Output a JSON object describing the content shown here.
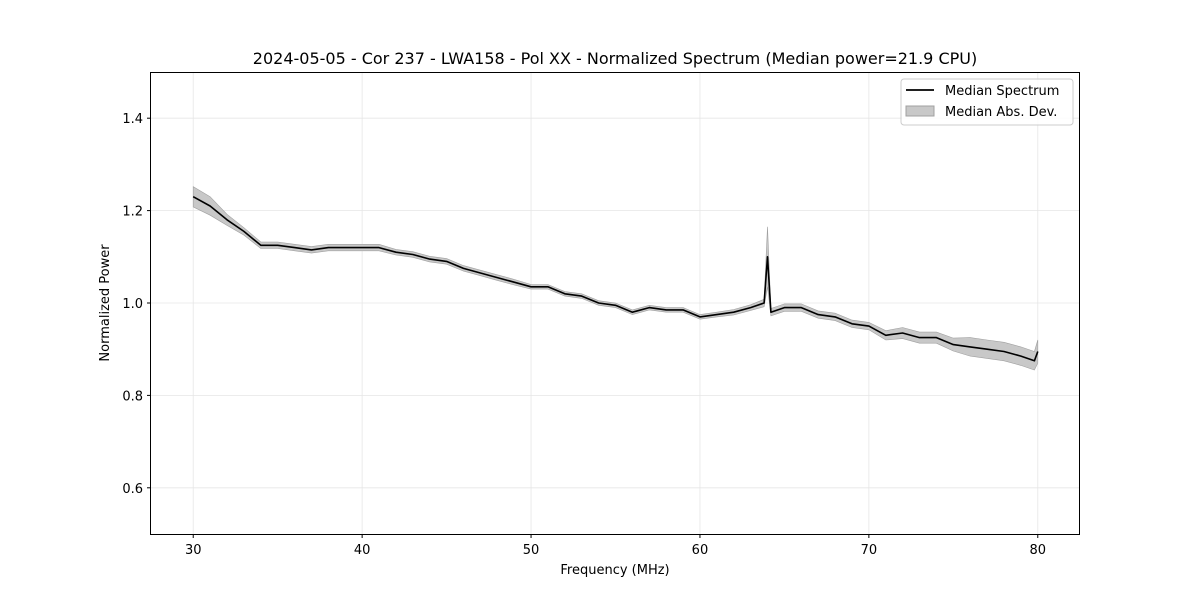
{
  "chart_data": {
    "type": "line",
    "title": "2024-05-05 - Cor 237 - LWA158 - Pol XX - Normalized Spectrum (Median power=21.9 CPU)",
    "xlabel": "Frequency (MHz)",
    "ylabel": "Normalized Power",
    "xlim": [
      27.5,
      82.5
    ],
    "ylim": [
      0.5,
      1.5
    ],
    "xticks": [
      30,
      40,
      50,
      60,
      70,
      80
    ],
    "yticks": [
      0.6,
      0.8,
      1.0,
      1.2,
      1.4
    ],
    "xtick_labels": [
      "30",
      "40",
      "50",
      "60",
      "70",
      "80"
    ],
    "ytick_labels": [
      "0.6",
      "0.8",
      "1.0",
      "1.2",
      "1.4"
    ],
    "grid": true,
    "legend_position": "top-right",
    "legend": [
      "Median Spectrum",
      "Median Abs. Dev."
    ],
    "colors": {
      "line": "#000000",
      "band": "#c8c8c8",
      "band_edge": "#a0a0a0",
      "grid": "#e6e6e6"
    },
    "series": [
      {
        "name": "Median Spectrum",
        "x": [
          30,
          31,
          32,
          33,
          34,
          35,
          36,
          37,
          38,
          39,
          40,
          41,
          42,
          43,
          44,
          45,
          46,
          47,
          48,
          49,
          50,
          51,
          52,
          53,
          54,
          55,
          56,
          57,
          58,
          59,
          60,
          61,
          62,
          63,
          63.8,
          64.0,
          64.2,
          65,
          66,
          67,
          68,
          69,
          70,
          71,
          72,
          73,
          74,
          75,
          76,
          77,
          78,
          79,
          79.8,
          80
        ],
        "y": [
          1.23,
          1.21,
          1.18,
          1.155,
          1.125,
          1.125,
          1.12,
          1.115,
          1.12,
          1.12,
          1.12,
          1.12,
          1.11,
          1.105,
          1.095,
          1.09,
          1.075,
          1.065,
          1.055,
          1.045,
          1.035,
          1.035,
          1.02,
          1.015,
          1.0,
          0.995,
          0.98,
          0.99,
          0.985,
          0.985,
          0.97,
          0.975,
          0.98,
          0.99,
          1.0,
          1.1,
          0.98,
          0.99,
          0.99,
          0.975,
          0.97,
          0.955,
          0.95,
          0.93,
          0.935,
          0.925,
          0.925,
          0.91,
          0.905,
          0.9,
          0.895,
          0.885,
          0.875,
          0.895
        ]
      },
      {
        "name": "Median Abs. Dev.",
        "x": [
          30,
          31,
          32,
          33,
          34,
          35,
          36,
          37,
          38,
          39,
          40,
          41,
          42,
          43,
          44,
          45,
          46,
          47,
          48,
          49,
          50,
          51,
          52,
          53,
          54,
          55,
          56,
          57,
          58,
          59,
          60,
          61,
          62,
          63,
          63.8,
          64.0,
          64.2,
          65,
          66,
          67,
          68,
          69,
          70,
          71,
          72,
          73,
          74,
          75,
          76,
          77,
          78,
          79,
          79.8,
          80
        ],
        "mad": [
          0.022,
          0.02,
          0.012,
          0.008,
          0.007,
          0.007,
          0.007,
          0.007,
          0.007,
          0.007,
          0.007,
          0.007,
          0.006,
          0.006,
          0.006,
          0.006,
          0.006,
          0.006,
          0.006,
          0.006,
          0.005,
          0.005,
          0.005,
          0.005,
          0.005,
          0.005,
          0.005,
          0.005,
          0.005,
          0.005,
          0.005,
          0.005,
          0.006,
          0.006,
          0.008,
          0.065,
          0.008,
          0.008,
          0.008,
          0.008,
          0.008,
          0.008,
          0.008,
          0.01,
          0.012,
          0.012,
          0.012,
          0.014,
          0.02,
          0.02,
          0.02,
          0.02,
          0.02,
          0.025
        ]
      }
    ]
  }
}
